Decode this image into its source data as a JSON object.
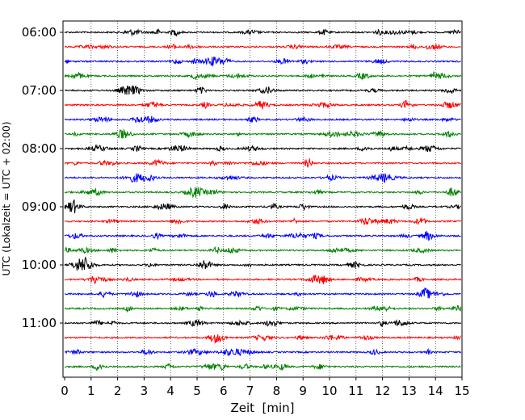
{
  "chart_data": {
    "type": "line",
    "title": "",
    "xlabel": "Zeit  [min]",
    "ylabel": "UTC (Lokalzeit = UTC + 02:00)",
    "xlim": [
      0,
      15
    ],
    "x_ticks": [
      "0",
      "1",
      "2",
      "3",
      "4",
      "5",
      "6",
      "7",
      "8",
      "9",
      "10",
      "11",
      "12",
      "13",
      "14",
      "15"
    ],
    "y_ticks": [
      "06:00",
      "07:00",
      "08:00",
      "09:00",
      "10:00",
      "11:00"
    ],
    "trace_interval_minutes": 15,
    "trace_count": 24,
    "trace_colors": [
      "#000000",
      "#ff0000",
      "#0000ff",
      "#008000"
    ],
    "vertical_grid": "dotted, every minute",
    "traces": [
      {
        "start": "06:00"
      },
      {
        "start": "06:15"
      },
      {
        "start": "06:30"
      },
      {
        "start": "06:45"
      },
      {
        "start": "07:00"
      },
      {
        "start": "07:15"
      },
      {
        "start": "07:30"
      },
      {
        "start": "07:45"
      },
      {
        "start": "08:00"
      },
      {
        "start": "08:15"
      },
      {
        "start": "08:30"
      },
      {
        "start": "08:45"
      },
      {
        "start": "09:00"
      },
      {
        "start": "09:15"
      },
      {
        "start": "09:30"
      },
      {
        "start": "09:45"
      },
      {
        "start": "10:00"
      },
      {
        "start": "10:15"
      },
      {
        "start": "10:30"
      },
      {
        "start": "10:45"
      },
      {
        "start": "11:00"
      },
      {
        "start": "11:15"
      },
      {
        "start": "11:30"
      },
      {
        "start": "11:45"
      }
    ]
  }
}
